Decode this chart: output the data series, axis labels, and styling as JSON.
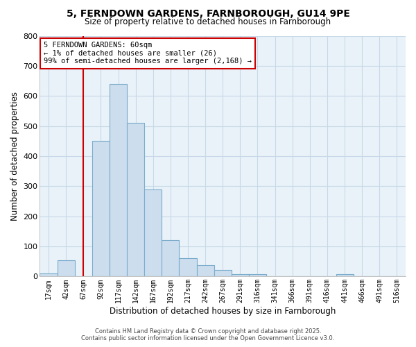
{
  "title_line1": "5, FERNDOWN GARDENS, FARNBOROUGH, GU14 9PE",
  "title_line2": "Size of property relative to detached houses in Farnborough",
  "xlabel": "Distribution of detached houses by size in Farnborough",
  "ylabel": "Number of detached properties",
  "categories": [
    "17sqm",
    "42sqm",
    "67sqm",
    "92sqm",
    "117sqm",
    "142sqm",
    "167sqm",
    "192sqm",
    "217sqm",
    "242sqm",
    "267sqm",
    "291sqm",
    "316sqm",
    "341sqm",
    "366sqm",
    "391sqm",
    "416sqm",
    "441sqm",
    "466sqm",
    "491sqm",
    "516sqm"
  ],
  "values": [
    10,
    55,
    0,
    450,
    640,
    510,
    290,
    120,
    60,
    37,
    22,
    8,
    8,
    0,
    0,
    0,
    0,
    8,
    0,
    0,
    0
  ],
  "bar_color": "#ccdded",
  "bar_edge_color": "#7aabcc",
  "red_line_x": 2.5,
  "annotation_text": "5 FERNDOWN GARDENS: 60sqm\n← 1% of detached houses are smaller (26)\n99% of semi-detached houses are larger (2,168) →",
  "annotation_box_color": "#ffffff",
  "annotation_box_edge": "#cc0000",
  "ylim": [
    0,
    800
  ],
  "yticks": [
    0,
    100,
    200,
    300,
    400,
    500,
    600,
    700,
    800
  ],
  "grid_color": "#c8d8e8",
  "background_color": "#e8f2f8",
  "footer_line1": "Contains HM Land Registry data © Crown copyright and database right 2025.",
  "footer_line2": "Contains public sector information licensed under the Open Government Licence v3.0."
}
